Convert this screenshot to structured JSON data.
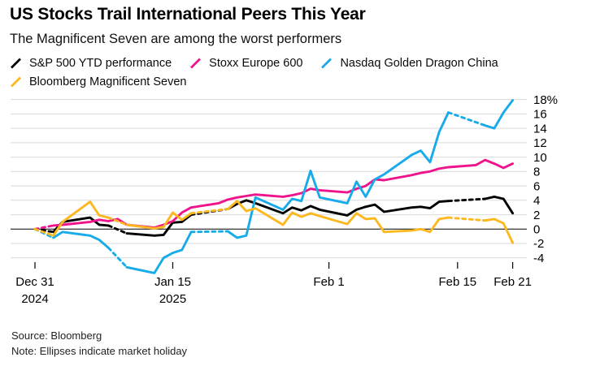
{
  "header": {
    "title": "US Stocks Trail International Peers This Year",
    "subtitle": "The Magnificent Seven are among the worst performers"
  },
  "footer": {
    "source": "Source: Bloomberg",
    "note": "Note: Ellipses indicate market holiday"
  },
  "chart_data": {
    "type": "line",
    "title": "US Stocks Trail International Peers This Year",
    "subtitle": "The Magnificent Seven are among the worst performers",
    "x_unit": "calendar days since Dec 31 2024, YTD % change",
    "x_range": [
      0,
      52
    ],
    "ylim": [
      -6.5,
      19
    ],
    "grid": true,
    "legend_position": "top",
    "y_ticks": [
      18,
      16,
      14,
      12,
      10,
      8,
      6,
      4,
      2,
      0,
      -2,
      -4
    ],
    "y_top_label": "18%",
    "x_ticks": [
      {
        "day": 0,
        "label": "Dec 31",
        "label2": "2024"
      },
      {
        "day": 15,
        "label": "Jan 15",
        "label2": "2025"
      },
      {
        "day": 32,
        "label": "Feb 1"
      },
      {
        "day": 46,
        "label": "Feb 15"
      },
      {
        "day": 52,
        "label": "Feb 21"
      }
    ],
    "holiday_note": "dashed (ellipsis) segments indicate market holiday",
    "series": [
      {
        "id": "sp500",
        "name": "S&P 500 YTD performance",
        "color": "#000000",
        "points": [
          [
            0,
            0
          ],
          [
            2,
            -0.4
          ],
          [
            3,
            1.0
          ],
          [
            6,
            1.6
          ],
          [
            7,
            0.6
          ],
          [
            8,
            0.5
          ],
          [
            10,
            -0.6
          ],
          [
            13,
            -0.9
          ],
          [
            14,
            -0.8
          ],
          [
            15,
            0.9
          ],
          [
            16,
            1.0
          ],
          [
            17,
            2.0
          ],
          [
            21,
            2.8
          ],
          [
            22,
            3.5
          ],
          [
            23,
            4.0
          ],
          [
            24,
            3.6
          ],
          [
            27,
            2.2
          ],
          [
            28,
            3.0
          ],
          [
            29,
            2.6
          ],
          [
            30,
            3.2
          ],
          [
            31,
            2.7
          ],
          [
            34,
            1.9
          ],
          [
            35,
            2.7
          ],
          [
            36,
            3.1
          ],
          [
            37,
            3.4
          ],
          [
            38,
            2.4
          ],
          [
            41,
            3.0
          ],
          [
            42,
            3.1
          ],
          [
            43,
            2.9
          ],
          [
            44,
            3.8
          ],
          [
            45,
            3.9
          ],
          [
            49,
            4.2
          ],
          [
            50,
            4.5
          ],
          [
            51,
            4.2
          ],
          [
            52,
            2.2
          ]
        ],
        "dashed_segments": [
          [
            0,
            2
          ],
          [
            8,
            10
          ],
          [
            17,
            21
          ],
          [
            45,
            49
          ]
        ]
      },
      {
        "id": "stoxx600",
        "name": "Stoxx Europe 600",
        "color": "#f0148c",
        "points": [
          [
            0,
            0
          ],
          [
            2,
            0.5
          ],
          [
            3,
            0.6
          ],
          [
            6,
            1.0
          ],
          [
            7,
            1.3
          ],
          [
            8,
            1.1
          ],
          [
            9,
            1.4
          ],
          [
            10,
            0.6
          ],
          [
            13,
            0.2
          ],
          [
            14,
            0.6
          ],
          [
            15,
            1.1
          ],
          [
            16,
            2.3
          ],
          [
            17,
            3.0
          ],
          [
            20,
            3.6
          ],
          [
            21,
            4.1
          ],
          [
            22,
            4.4
          ],
          [
            23,
            4.6
          ],
          [
            24,
            4.8
          ],
          [
            27,
            4.5
          ],
          [
            28,
            4.7
          ],
          [
            29,
            5.0
          ],
          [
            30,
            5.6
          ],
          [
            31,
            5.4
          ],
          [
            34,
            5.1
          ],
          [
            35,
            5.6
          ],
          [
            36,
            6.0
          ],
          [
            37,
            6.9
          ],
          [
            38,
            6.8
          ],
          [
            41,
            7.5
          ],
          [
            42,
            7.8
          ],
          [
            43,
            8.0
          ],
          [
            44,
            8.4
          ],
          [
            45,
            8.6
          ],
          [
            48,
            8.9
          ],
          [
            49,
            9.6
          ],
          [
            50,
            9.1
          ],
          [
            51,
            8.5
          ],
          [
            52,
            9.1
          ]
        ],
        "dashed_segments": [
          [
            0,
            2
          ]
        ]
      },
      {
        "id": "golden-dragon",
        "name": "Nasdaq Golden Dragon China",
        "color": "#18abea",
        "points": [
          [
            0,
            0
          ],
          [
            2,
            -1.2
          ],
          [
            3,
            -0.4
          ],
          [
            6,
            -0.9
          ],
          [
            7,
            -1.5
          ],
          [
            8,
            -2.6
          ],
          [
            10,
            -5.3
          ],
          [
            13,
            -6.1
          ],
          [
            14,
            -4.0
          ],
          [
            15,
            -3.3
          ],
          [
            16,
            -2.9
          ],
          [
            17,
            -0.4
          ],
          [
            21,
            -0.3
          ],
          [
            22,
            -1.2
          ],
          [
            23,
            -0.9
          ],
          [
            24,
            4.4
          ],
          [
            27,
            2.7
          ],
          [
            28,
            4.2
          ],
          [
            29,
            3.9
          ],
          [
            30,
            8.1
          ],
          [
            31,
            4.4
          ],
          [
            34,
            3.6
          ],
          [
            35,
            6.6
          ],
          [
            36,
            4.5
          ],
          [
            37,
            6.9
          ],
          [
            38,
            7.6
          ],
          [
            41,
            10.3
          ],
          [
            42,
            10.9
          ],
          [
            43,
            9.3
          ],
          [
            44,
            13.5
          ],
          [
            45,
            16.2
          ],
          [
            49,
            14.4
          ],
          [
            50,
            14.0
          ],
          [
            51,
            16.2
          ],
          [
            52,
            17.9
          ]
        ],
        "dashed_segments": [
          [
            0,
            2
          ],
          [
            8,
            10
          ],
          [
            17,
            21
          ],
          [
            45,
            49
          ]
        ]
      },
      {
        "id": "mag7",
        "name": "Bloomberg Magnificent Seven",
        "color": "#fcb81e",
        "points": [
          [
            0,
            0
          ],
          [
            2,
            -0.9
          ],
          [
            3,
            1.0
          ],
          [
            6,
            3.8
          ],
          [
            7,
            1.9
          ],
          [
            8,
            1.6
          ],
          [
            10,
            0.6
          ],
          [
            13,
            0.1
          ],
          [
            14,
            0.3
          ],
          [
            15,
            2.3
          ],
          [
            16,
            1.3
          ],
          [
            17,
            2.2
          ],
          [
            21,
            2.8
          ],
          [
            22,
            3.9
          ],
          [
            23,
            2.5
          ],
          [
            24,
            2.9
          ],
          [
            27,
            0.6
          ],
          [
            28,
            2.3
          ],
          [
            29,
            1.7
          ],
          [
            30,
            2.2
          ],
          [
            31,
            1.8
          ],
          [
            34,
            0.7
          ],
          [
            35,
            2.2
          ],
          [
            36,
            1.4
          ],
          [
            37,
            1.5
          ],
          [
            38,
            -0.4
          ],
          [
            41,
            -0.2
          ],
          [
            42,
            0.0
          ],
          [
            43,
            -0.4
          ],
          [
            44,
            1.4
          ],
          [
            45,
            1.6
          ],
          [
            49,
            1.2
          ],
          [
            50,
            1.4
          ],
          [
            51,
            0.8
          ],
          [
            52,
            -1.9
          ]
        ],
        "dashed_segments": [
          [
            0,
            2
          ],
          [
            8,
            10
          ],
          [
            17,
            21
          ],
          [
            45,
            49
          ]
        ]
      }
    ]
  }
}
